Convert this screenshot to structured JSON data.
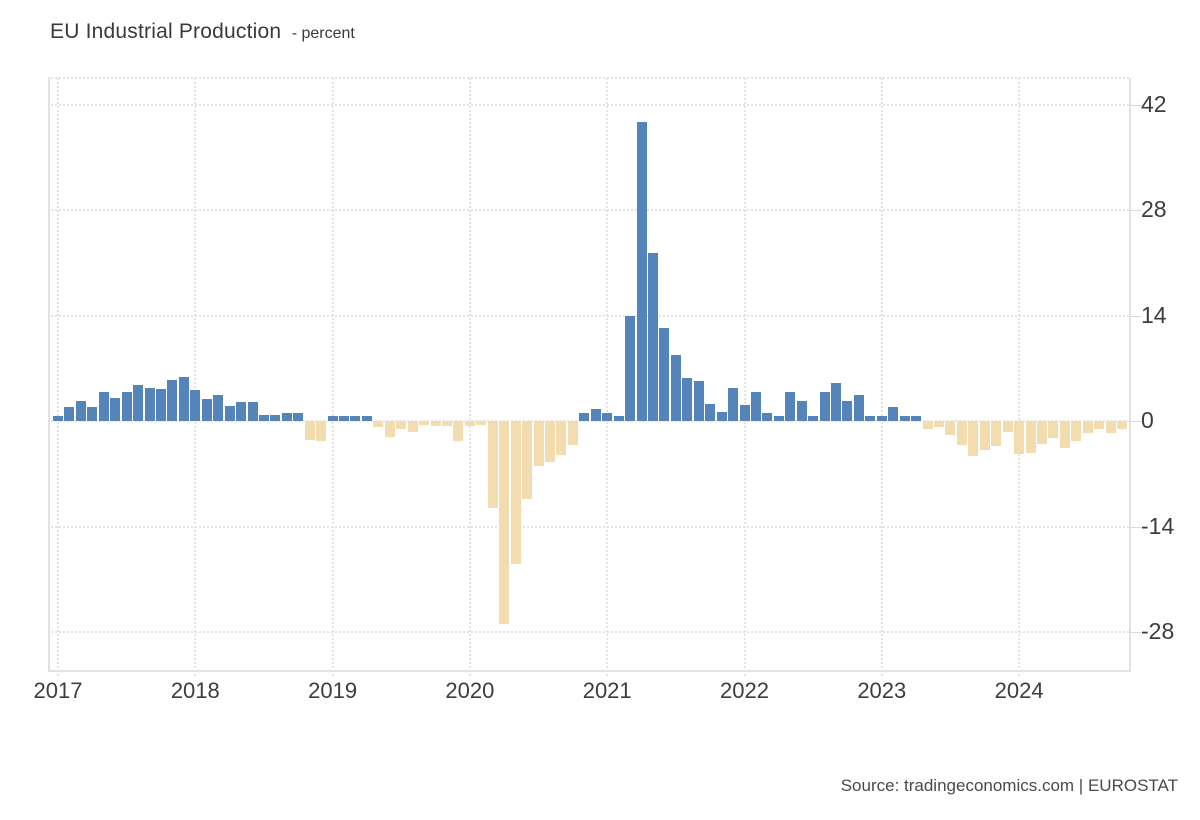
{
  "header": {
    "title": "EU Industrial Production",
    "subtitle": "- percent"
  },
  "footer": {
    "source": "Source: tradingeconomics.com | EUROSTAT"
  },
  "chart_data": {
    "type": "bar",
    "title": "EU Industrial Production",
    "ylabel": "percent",
    "legend_position": "none",
    "grid": "dotted",
    "ylim": [
      -32,
      46
    ],
    "y_ticks": [
      42,
      28,
      14,
      0,
      -14,
      -28
    ],
    "x_tick_labels": [
      "2017",
      "2018",
      "2019",
      "2020",
      "2021",
      "2022",
      "2023",
      "2024"
    ],
    "colors": {
      "positive_bar": "#5584BB",
      "negative_bar": "#F2DCB0",
      "grid": "#E4E4E4",
      "axis_line": "#E2E2E2",
      "label_text": "#3D3D3D"
    },
    "x": [
      "2017-01",
      "2017-02",
      "2017-03",
      "2017-04",
      "2017-05",
      "2017-06",
      "2017-07",
      "2017-08",
      "2017-09",
      "2017-10",
      "2017-11",
      "2017-12",
      "2018-01",
      "2018-02",
      "2018-03",
      "2018-04",
      "2018-05",
      "2018-06",
      "2018-07",
      "2018-08",
      "2018-09",
      "2018-10",
      "2018-11",
      "2018-12",
      "2019-01",
      "2019-02",
      "2019-03",
      "2019-04",
      "2019-05",
      "2019-06",
      "2019-07",
      "2019-08",
      "2019-09",
      "2019-10",
      "2019-11",
      "2019-12",
      "2020-01",
      "2020-02",
      "2020-03",
      "2020-04",
      "2020-05",
      "2020-06",
      "2020-07",
      "2020-08",
      "2020-09",
      "2020-10",
      "2020-11",
      "2020-12",
      "2021-01",
      "2021-02",
      "2021-03",
      "2021-04",
      "2021-05",
      "2021-06",
      "2021-07",
      "2021-08",
      "2021-09",
      "2021-10",
      "2021-11",
      "2021-12",
      "2022-01",
      "2022-02",
      "2022-03",
      "2022-04",
      "2022-05",
      "2022-06",
      "2022-07",
      "2022-08",
      "2022-09",
      "2022-10",
      "2022-11",
      "2022-12",
      "2023-01",
      "2023-02",
      "2023-03",
      "2023-04",
      "2023-05",
      "2023-06",
      "2023-07",
      "2023-08",
      "2023-09",
      "2023-10",
      "2023-11",
      "2023-12",
      "2024-01",
      "2024-02",
      "2024-03",
      "2024-04",
      "2024-05",
      "2024-06",
      "2024-07",
      "2024-08",
      "2024-09",
      "2024-10"
    ],
    "values": [
      0.7,
      1.8,
      2.6,
      1.8,
      3.8,
      3.0,
      3.8,
      4.8,
      4.4,
      4.2,
      5.5,
      5.8,
      4.1,
      2.9,
      3.4,
      2.0,
      2.5,
      2.5,
      0.8,
      0.8,
      1.0,
      1.0,
      -2.5,
      -2.7,
      0.7,
      0.7,
      0.7,
      0.7,
      -0.8,
      -2.1,
      -1.0,
      -1.4,
      -0.5,
      -0.7,
      -0.7,
      -2.7,
      -0.7,
      -0.5,
      -11.5,
      -27.0,
      -19.0,
      -10.3,
      -6.0,
      -5.4,
      -4.5,
      -3.2,
      1.1,
      1.6,
      1.0,
      0.7,
      13.9,
      39.7,
      22.3,
      12.4,
      8.8,
      5.7,
      5.3,
      2.3,
      1.2,
      4.4,
      2.1,
      3.8,
      1.1,
      0.6,
      3.8,
      2.7,
      0.6,
      3.9,
      5.1,
      2.6,
      3.5,
      0.6,
      0.6,
      1.8,
      0.6,
      0.6,
      -1.0,
      -0.8,
      -1.8,
      -3.2,
      -4.6,
      -3.8,
      -3.3,
      -1.5,
      -4.4,
      -4.2,
      -3.0,
      -2.3,
      -3.6,
      -2.7,
      -1.6,
      -1.0,
      -1.6,
      -1.1
    ]
  }
}
